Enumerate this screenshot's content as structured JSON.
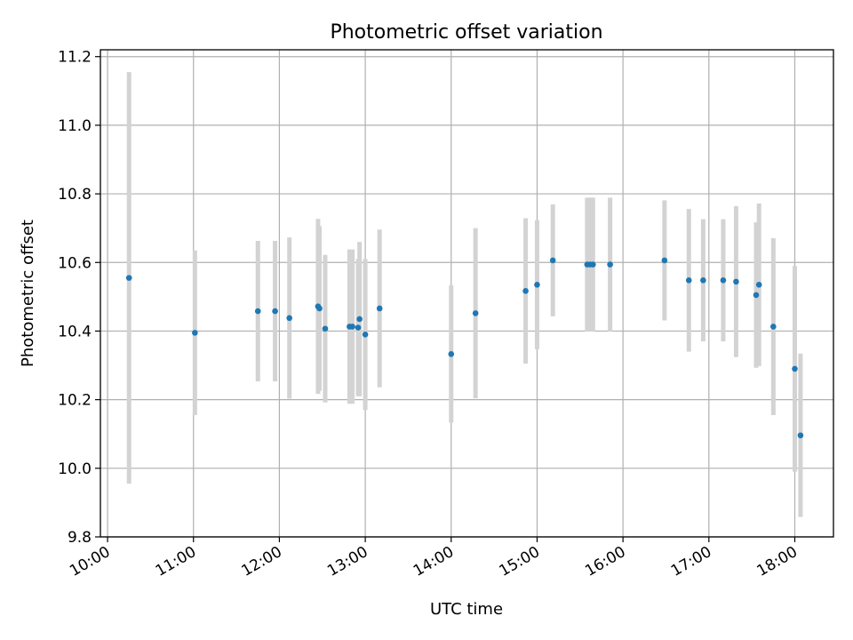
{
  "chart_data": {
    "type": "scatter",
    "title": "Photometric offset variation",
    "xlabel": "UTC time",
    "ylabel": "Photometric offset",
    "xlim": [
      "09:55",
      "18:27"
    ],
    "ylim": [
      9.8,
      11.22
    ],
    "grid": true,
    "x_ticks": [
      "10:00",
      "11:00",
      "12:00",
      "13:00",
      "14:00",
      "15:00",
      "16:00",
      "17:00",
      "18:00"
    ],
    "y_ticks": [
      9.8,
      10.0,
      10.2,
      10.4,
      10.6,
      10.8,
      11.0,
      11.2
    ],
    "y_tick_labels": [
      "9.8",
      "10.0",
      "10.2",
      "10.4",
      "10.6",
      "10.8",
      "11.0",
      "11.2"
    ],
    "point_color": "#1f77b4",
    "errorbar_color": "#d3d3d3",
    "points": [
      {
        "x": "10:15",
        "y": 10.555,
        "err": 0.6
      },
      {
        "x": "11:01",
        "y": 10.395,
        "err": 0.24
      },
      {
        "x": "11:45",
        "y": 10.458,
        "err": 0.205
      },
      {
        "x": "11:57",
        "y": 10.458,
        "err": 0.205
      },
      {
        "x": "12:07",
        "y": 10.438,
        "err": 0.235
      },
      {
        "x": "12:27",
        "y": 10.472,
        "err": 0.255
      },
      {
        "x": "12:28",
        "y": 10.466,
        "err": 0.24
      },
      {
        "x": "12:32",
        "y": 10.407,
        "err": 0.215
      },
      {
        "x": "12:49",
        "y": 10.413,
        "err": 0.225
      },
      {
        "x": "12:51",
        "y": 10.413,
        "err": 0.225
      },
      {
        "x": "12:55",
        "y": 10.41,
        "err": 0.2
      },
      {
        "x": "12:56",
        "y": 10.435,
        "err": 0.225
      },
      {
        "x": "13:00",
        "y": 10.39,
        "err": 0.22
      },
      {
        "x": "13:10",
        "y": 10.466,
        "err": 0.23
      },
      {
        "x": "14:00",
        "y": 10.333,
        "err": 0.2
      },
      {
        "x": "14:17",
        "y": 10.452,
        "err": 0.248
      },
      {
        "x": "14:52",
        "y": 10.517,
        "err": 0.212
      },
      {
        "x": "15:00",
        "y": 10.535,
        "err": 0.188
      },
      {
        "x": "15:11",
        "y": 10.606,
        "err": 0.163
      },
      {
        "x": "15:35",
        "y": 10.594,
        "err": 0.195
      },
      {
        "x": "15:37",
        "y": 10.594,
        "err": 0.195
      },
      {
        "x": "15:39",
        "y": 10.594,
        "err": 0.195
      },
      {
        "x": "15:51",
        "y": 10.594,
        "err": 0.195
      },
      {
        "x": "16:29",
        "y": 10.606,
        "err": 0.175
      },
      {
        "x": "16:46",
        "y": 10.548,
        "err": 0.208
      },
      {
        "x": "16:56",
        "y": 10.548,
        "err": 0.178
      },
      {
        "x": "17:10",
        "y": 10.548,
        "err": 0.178
      },
      {
        "x": "17:19",
        "y": 10.544,
        "err": 0.22
      },
      {
        "x": "17:33",
        "y": 10.505,
        "err": 0.212
      },
      {
        "x": "17:35",
        "y": 10.535,
        "err": 0.237
      },
      {
        "x": "17:45",
        "y": 10.413,
        "err": 0.258
      },
      {
        "x": "18:00",
        "y": 10.29,
        "err": 0.3
      },
      {
        "x": "18:04",
        "y": 10.096,
        "err": 0.238
      }
    ]
  }
}
